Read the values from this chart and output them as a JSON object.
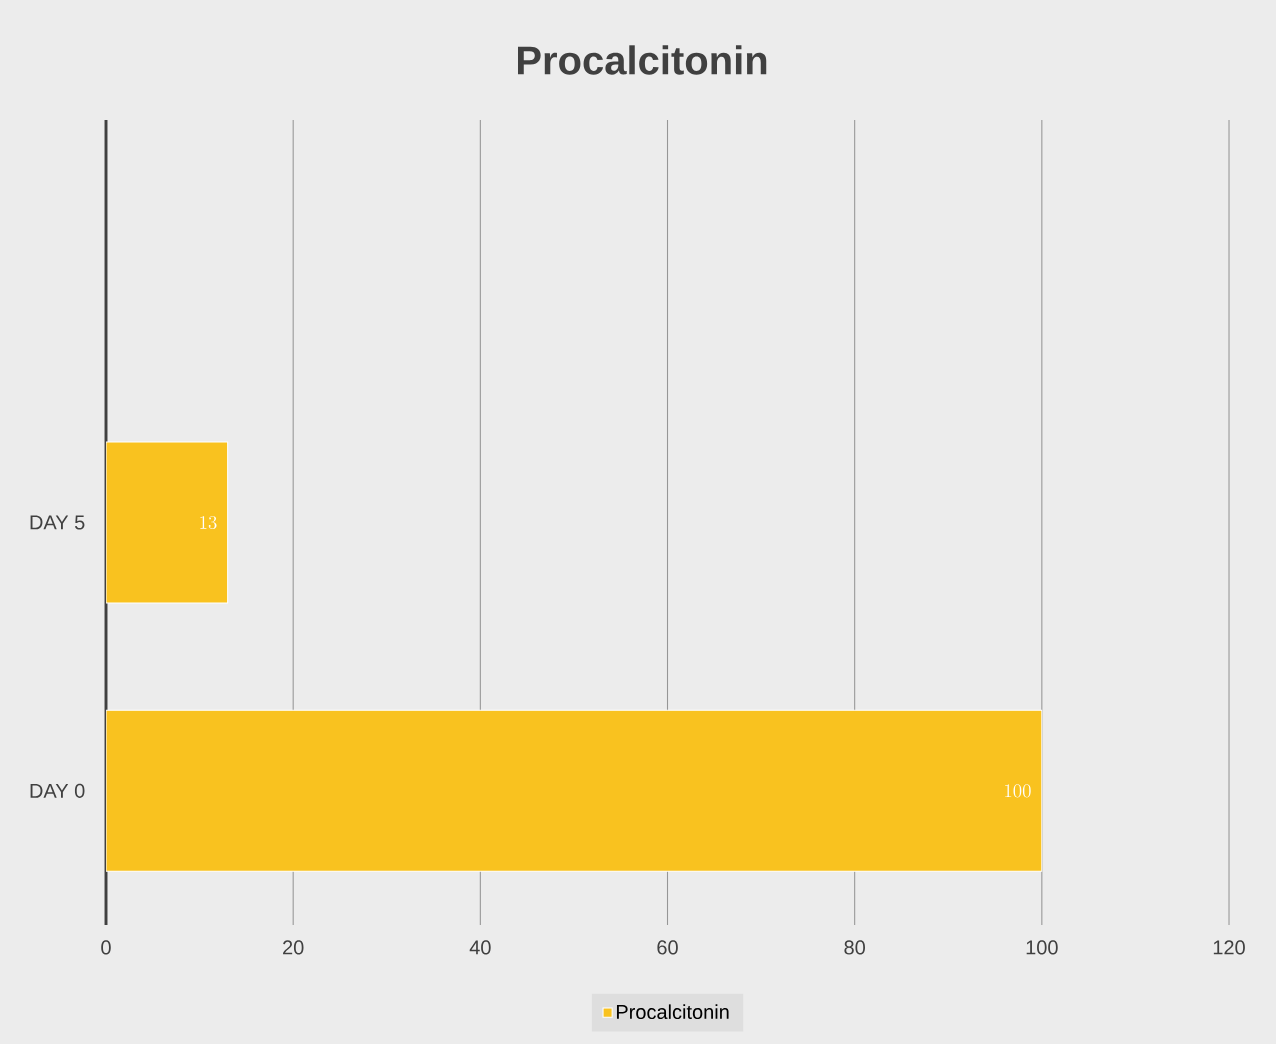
{
  "chart_data": {
    "type": "bar",
    "orientation": "horizontal",
    "title": "Procalcitonin",
    "categories": [
      null,
      "DAY 5",
      "DAY 0"
    ],
    "series": [
      {
        "name": "Procalcitonin",
        "color": "#f9c21f",
        "values": [
          null,
          13,
          100
        ]
      }
    ],
    "xlim": [
      0,
      120
    ],
    "xticks": [
      0,
      20,
      40,
      60,
      80,
      100,
      120
    ],
    "grid": "x",
    "legend": "bottom",
    "data_labels": true
  }
}
